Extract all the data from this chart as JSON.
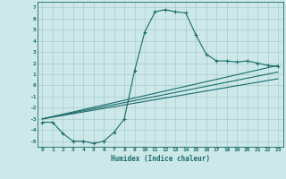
{
  "xlabel": "Humidex (Indice chaleur)",
  "background_color": "#cce8e8",
  "grid_color": "#aacccc",
  "line_color": "#1a6b6b",
  "xlim": [
    -0.5,
    23.5
  ],
  "ylim": [
    -5.5,
    7.5
  ],
  "xticks": [
    0,
    1,
    2,
    3,
    4,
    5,
    6,
    7,
    8,
    9,
    10,
    11,
    12,
    13,
    14,
    15,
    16,
    17,
    18,
    19,
    20,
    21,
    22,
    23
  ],
  "yticks": [
    -5,
    -4,
    -3,
    -2,
    -1,
    0,
    1,
    2,
    3,
    4,
    5,
    6,
    7
  ],
  "curve1_x": [
    0,
    1,
    2,
    3,
    4,
    5,
    6,
    7,
    8,
    9,
    10,
    11,
    12,
    13,
    14,
    15,
    16,
    17,
    18,
    19,
    20,
    21,
    22,
    23
  ],
  "curve1_y": [
    -3.3,
    -3.3,
    -4.3,
    -5.0,
    -5.0,
    -5.2,
    -5.0,
    -4.2,
    -3.0,
    1.3,
    4.8,
    6.6,
    6.8,
    6.6,
    6.5,
    4.5,
    2.8,
    2.2,
    2.2,
    2.1,
    2.2,
    2.0,
    1.8,
    1.7
  ],
  "line2_x": [
    0,
    23
  ],
  "line2_y": [
    -3.0,
    1.8
  ],
  "line3_x": [
    0,
    23
  ],
  "line3_y": [
    -3.0,
    1.2
  ],
  "line4_x": [
    0,
    23
  ],
  "line4_y": [
    -3.0,
    0.6
  ]
}
